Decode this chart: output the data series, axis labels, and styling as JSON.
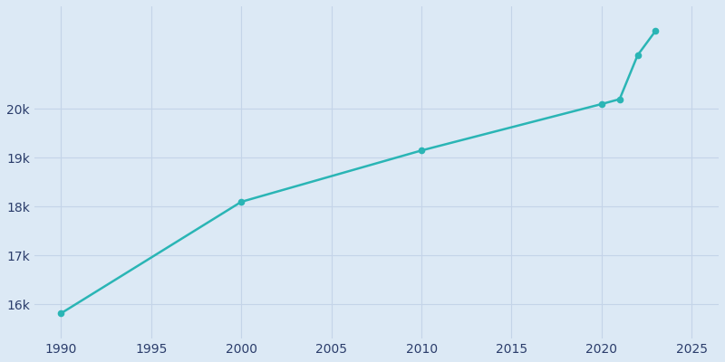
{
  "years": [
    1990,
    2000,
    2010,
    2020,
    2021,
    2022,
    2023
  ],
  "population": [
    15820,
    18100,
    19150,
    20100,
    20200,
    21100,
    21600
  ],
  "line_color": "#2ab5b5",
  "marker_color": "#2ab5b5",
  "bg_color": "#dce9f5",
  "fig_bg_color": "#dce9f5",
  "ytick_labels": [
    "16k",
    "17k",
    "18k",
    "19k",
    "20k"
  ],
  "ytick_values": [
    16000,
    17000,
    18000,
    19000,
    20000
  ],
  "xlim": [
    1988.5,
    2026.5
  ],
  "ylim": [
    15300,
    22100
  ],
  "xtick_values": [
    1990,
    1995,
    2000,
    2005,
    2010,
    2015,
    2020,
    2025
  ],
  "grid_color": "#c4d4e8",
  "label_color": "#2b3d6b",
  "linewidth": 1.8,
  "markersize": 4.5
}
